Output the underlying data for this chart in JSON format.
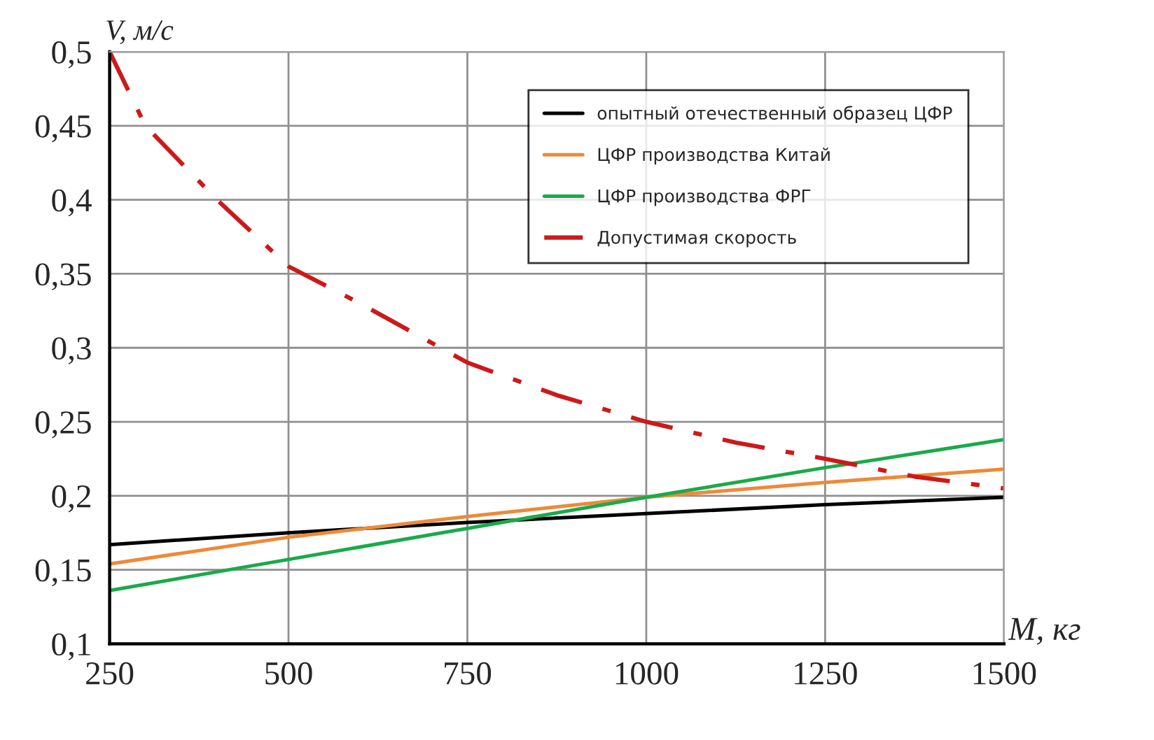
{
  "chart_data": {
    "type": "line",
    "xlabel": "M, кг",
    "ylabel": "V, м/с",
    "x": [
      250,
      300,
      400,
      500,
      600,
      750,
      875,
      1000,
      1125,
      1250,
      1375,
      1500
    ],
    "series": [
      {
        "name": "опытный отечественный образец ЦФР",
        "color": "#000000",
        "line_style": "solid",
        "x": [
          250,
          500,
          750,
          1000,
          1250,
          1500
        ],
        "values": [
          0.167,
          0.175,
          0.182,
          0.188,
          0.194,
          0.199
        ]
      },
      {
        "name": "ЦФР производства Китай",
        "color": "#ed8a3a",
        "line_style": "solid",
        "x": [
          250,
          500,
          750,
          1000,
          1250,
          1500
        ],
        "values": [
          0.154,
          0.172,
          0.186,
          0.199,
          0.209,
          0.218
        ]
      },
      {
        "name": "ЦФР производства ФРГ",
        "color": "#1aaa4a",
        "line_style": "solid",
        "x": [
          250,
          500,
          750,
          1000,
          1250,
          1500
        ],
        "values": [
          0.136,
          0.157,
          0.178,
          0.199,
          0.219,
          0.238
        ]
      },
      {
        "name": "Допустимая скорость",
        "color": "#cc1a1a",
        "line_style": "dashdot",
        "values": [
          0.5,
          0.45,
          0.4,
          0.355,
          0.33,
          0.29,
          0.268,
          0.25,
          0.236,
          0.225,
          0.213,
          0.205
        ]
      }
    ],
    "xlim": [
      250,
      1500
    ],
    "xticks": [
      250,
      500,
      750,
      1000,
      1250,
      1500
    ],
    "ylim": [
      0.1,
      0.5
    ],
    "yticks": [
      {
        "value": 0.1,
        "label": "0,1"
      },
      {
        "value": 0.15,
        "label": "0,15"
      },
      {
        "value": 0.2,
        "label": "0,2"
      },
      {
        "value": 0.25,
        "label": "0,25"
      },
      {
        "value": 0.3,
        "label": "0,3"
      },
      {
        "value": 0.35,
        "label": "0,35"
      },
      {
        "value": 0.4,
        "label": "0,4"
      },
      {
        "value": 0.45,
        "label": "0,45"
      },
      {
        "value": 0.5,
        "label": "0,5"
      }
    ],
    "grid": true,
    "legend": "top right",
    "marker": "none"
  }
}
